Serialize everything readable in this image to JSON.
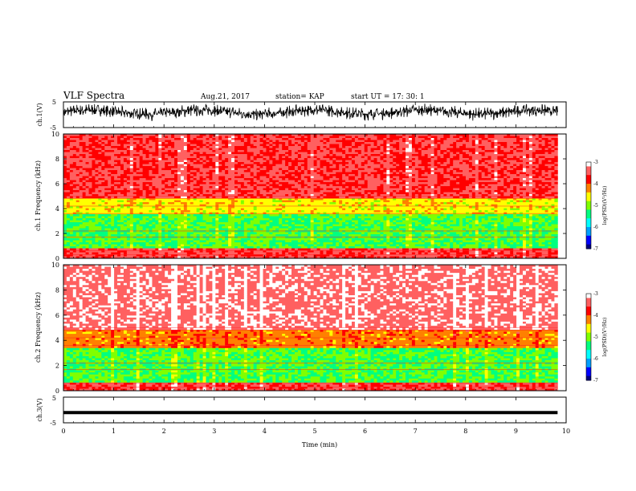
{
  "header": {
    "title": "VLF Spectra",
    "date": "Aug.21, 2017",
    "station": "station= KAP",
    "start": "start  UT =   17: 30: 1"
  },
  "chart_data": [
    {
      "type": "line",
      "name": "ch.1 waveform",
      "ylabel": "ch.1(V)",
      "yticks": [
        "5",
        "-5"
      ],
      "ylim": [
        -5,
        5
      ],
      "x_unit": "min",
      "xlim": [
        0,
        9.83
      ],
      "style": "noisy waveform ~ +1 V mean with ~±2.5 V fluctuations"
    },
    {
      "type": "heatmap",
      "name": "ch.1 spectrogram",
      "ylabel": "ch.1 Frequency (kHz)",
      "ylim": [
        0,
        10
      ],
      "yticks": [
        "0",
        "2",
        "4",
        "6",
        "8",
        "10"
      ],
      "xlim": [
        0,
        9.83
      ],
      "colorbar": {
        "label": "log(PSD)(V²/Hz)",
        "ticks": [
          "-3",
          "-4",
          "-5",
          "-6",
          "-7"
        ],
        "range": [
          -7,
          -3
        ]
      },
      "bands_kHz": [
        {
          "from": 0,
          "to": 0.8,
          "log_psd": -3.6
        },
        {
          "from": 0.8,
          "to": 3.6,
          "log_psd": -5.2
        },
        {
          "from": 3.6,
          "to": 4.9,
          "log_psd": -4.6
        },
        {
          "from": 4.9,
          "to": 10,
          "log_psd": -3.6
        }
      ]
    },
    {
      "type": "heatmap",
      "name": "ch.2 spectrogram",
      "ylabel": "ch.2 Frequency (kHz)",
      "ylim": [
        0,
        10
      ],
      "yticks": [
        "0",
        "2",
        "4",
        "6",
        "8",
        "10"
      ],
      "xlim": [
        0,
        9.83
      ],
      "colorbar": {
        "label": "log(PSD)(V²/Hz)",
        "ticks": [
          "-3",
          "-4",
          "-5",
          "-6",
          "-7"
        ],
        "range": [
          -7,
          -3
        ]
      },
      "bands_kHz": [
        {
          "from": 0,
          "to": 0.6,
          "log_psd": -3.6
        },
        {
          "from": 0.6,
          "to": 3.4,
          "log_psd": -5.2
        },
        {
          "from": 3.4,
          "to": 4.8,
          "log_psd": -4.2
        },
        {
          "from": 4.8,
          "to": 10,
          "log_psd": -3.3
        }
      ]
    },
    {
      "type": "line",
      "name": "ch.3 waveform",
      "ylabel": "ch.3(V)",
      "yticks": [
        "5",
        "-5"
      ],
      "ylim": [
        -5,
        5
      ],
      "xlim": [
        0,
        9.83
      ],
      "style": "nearly constant ~ -1 V thick line"
    }
  ],
  "x_axis": {
    "label": "Time  (min)",
    "ticks": [
      "0",
      "1",
      "2",
      "3",
      "4",
      "5",
      "6",
      "7",
      "8",
      "9",
      "10"
    ],
    "range": [
      0,
      10
    ]
  },
  "colors": {
    "colormap": [
      "#000080",
      "#0000ff",
      "#00a0ff",
      "#00ffff",
      "#00ff80",
      "#80ff00",
      "#ffff00",
      "#ff8000",
      "#ff0000",
      "#ff6060",
      "#ffffff"
    ]
  }
}
